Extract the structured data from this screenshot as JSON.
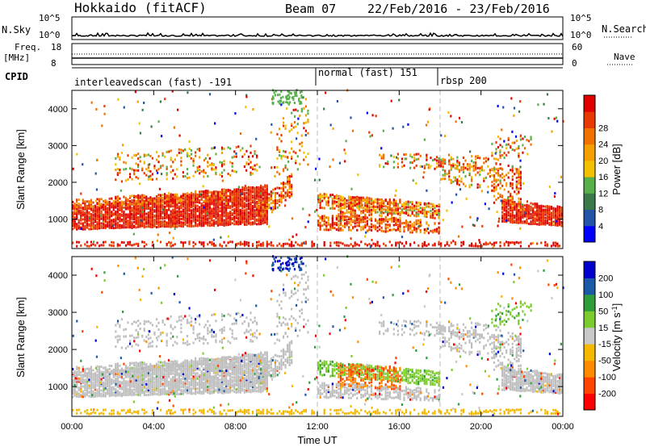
{
  "header": {
    "station": "Hokkaido (fitACF)",
    "beam": "Beam 07",
    "date_range": "22/Feb/2016 - 23/Feb/2016"
  },
  "noise_panel": {
    "label": "N.Sky",
    "tick_high": "10^5",
    "tick_low": "10^0",
    "right_tick_high": "10^5",
    "right_tick_low": "10^0",
    "right_label": "N.Search"
  },
  "freq_panel": {
    "label_line1": "Freq.",
    "label_line2": "[MHz]",
    "tick_high": "18",
    "tick_low": "8",
    "right_tick_high": "60",
    "right_tick_low": "0",
    "right_label": "Nave"
  },
  "cpid_panel": {
    "label": "CPID",
    "segments": [
      {
        "text": "interleavedscan (fast) -191"
      },
      {
        "text": "normal (fast) 151"
      },
      {
        "text": "rbsp 200"
      }
    ]
  },
  "colors": {
    "power_scale": [
      "#0000ff",
      "#2255aa",
      "#3a7a4a",
      "#58b04a",
      "#f2c200",
      "#f5a000",
      "#f07000",
      "#e83a00",
      "#e00000"
    ],
    "velocity_scale": [
      "#ff0000",
      "#ff4400",
      "#ff8c00",
      "#f5b800",
      "#c8c8c8",
      "#7ccc2e",
      "#2e9e3a",
      "#1a5aa8",
      "#0000cc"
    ],
    "ground_scatter": "#bebebe"
  },
  "chart_data": [
    {
      "type": "heatmap",
      "title": "Power",
      "xlabel": "Time UT",
      "ylabel": "Slant Range [km]",
      "x_ticks": [
        "00:00",
        "04:00",
        "08:00",
        "12:00",
        "16:00",
        "20:00",
        "00:00"
      ],
      "y_ticks": [
        "1000",
        "2000",
        "3000",
        "4000"
      ],
      "ylim": [
        200,
        4500
      ],
      "xlim_hours": [
        0,
        24
      ],
      "colorbar": {
        "label": "Power [dB]",
        "ticks": [
          "4",
          "8",
          "12",
          "16",
          "20",
          "24",
          "28"
        ],
        "range": [
          0,
          30
        ]
      }
    },
    {
      "type": "heatmap",
      "title": "Velocity",
      "xlabel": "Time UT",
      "ylabel": "Slant Range [km]",
      "x_ticks": [
        "00:00",
        "04:00",
        "08:00",
        "12:00",
        "16:00",
        "20:00",
        "00:00"
      ],
      "y_ticks": [
        "1000",
        "2000",
        "3000",
        "4000"
      ],
      "ylim": [
        200,
        4500
      ],
      "xlim_hours": [
        0,
        24
      ],
      "colorbar": {
        "label": "Velocity [m s^-1]",
        "ticks": [
          "200",
          "100",
          "50",
          "15",
          "-15",
          "-50",
          "-100",
          "-200"
        ]
      }
    }
  ]
}
